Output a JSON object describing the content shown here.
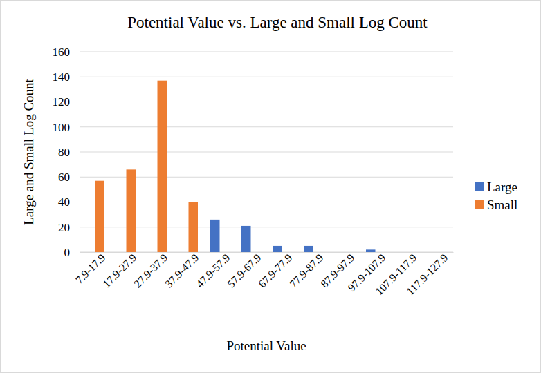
{
  "chart_data": {
    "type": "bar",
    "title": "Potential Value vs. Large and Small Log Count",
    "x_label": "Potential Value",
    "y_label": "Large and Small Log Count",
    "categories": [
      "7.9-17.9",
      "17.9-27.9",
      "27.9-37.9",
      "37.9-47.9",
      "47.9-57.9",
      "57.9-67.9",
      "67.9-77.9",
      "77.9-87.9",
      "87.9-97.9",
      "97.9-107.9",
      "107.9-117.9",
      "117.9-127.9"
    ],
    "series": [
      {
        "name": "Large",
        "color": "#4472c4",
        "values": [
          0,
          0,
          0,
          0,
          26,
          21,
          5,
          5,
          0,
          2,
          0,
          0
        ]
      },
      {
        "name": "Small",
        "color": "#ed7d31",
        "values": [
          57,
          66,
          137,
          40,
          0,
          0,
          0,
          0,
          0,
          0,
          0,
          0
        ]
      }
    ],
    "ylim": [
      0,
      160
    ],
    "yticks": [
      0,
      20,
      40,
      60,
      80,
      100,
      120,
      140,
      160
    ],
    "grid": true,
    "legend": "right"
  }
}
